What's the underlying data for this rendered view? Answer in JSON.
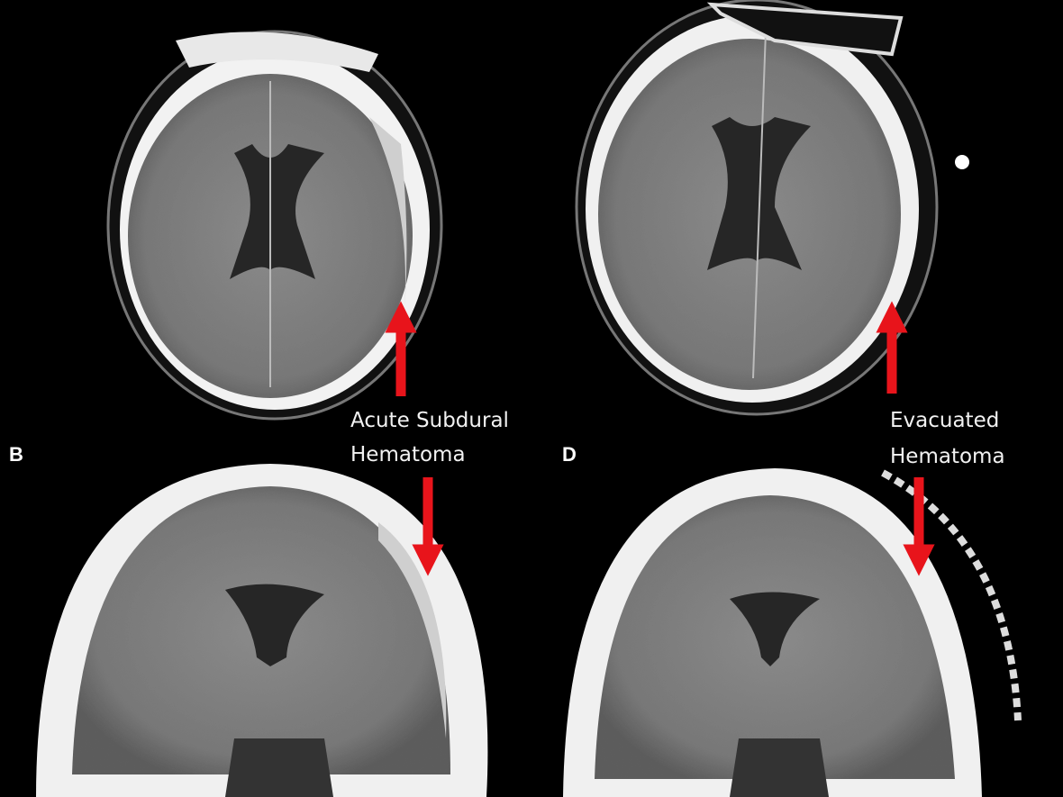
{
  "panels": [
    {
      "label": "B"
    },
    {
      "label": "D"
    }
  ],
  "annotations": [
    {
      "lines": [
        "Acute Subdural",
        "Hematoma"
      ]
    },
    {
      "lines": [
        "Evacuated",
        "Hematoma"
      ]
    }
  ]
}
